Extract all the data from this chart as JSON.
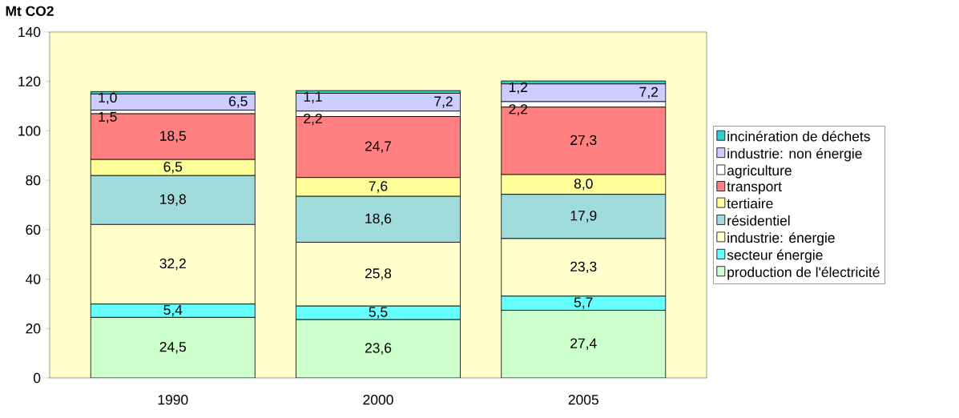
{
  "chart_data": {
    "type": "bar",
    "stacked": true,
    "ylabel": "Mt CO2",
    "categories": [
      "1990",
      "2000",
      "2005"
    ],
    "ylim": [
      0,
      140
    ],
    "yticks": [
      0,
      20,
      40,
      60,
      80,
      100,
      120,
      140
    ],
    "legend": "right",
    "series": [
      {
        "name": "production de l'électricité",
        "color": "#ccffcc",
        "values": [
          24.5,
          23.6,
          27.4
        ],
        "value_labels": [
          "24,5",
          "23,6",
          "27,4"
        ]
      },
      {
        "name": "secteur énergie",
        "color": "#66ffff",
        "values": [
          5.4,
          5.5,
          5.7
        ],
        "value_labels": [
          "5,4",
          "5,5",
          "5,7"
        ]
      },
      {
        "name": "industrie: énergie",
        "color": "#ffffcc",
        "values": [
          32.2,
          25.8,
          23.3
        ],
        "value_labels": [
          "32,2",
          "25,8",
          "23,3"
        ]
      },
      {
        "name": "résidentiel",
        "color": "#a0dcdc",
        "values": [
          19.8,
          18.6,
          17.9
        ],
        "value_labels": [
          "19,8",
          "18,6",
          "17,9"
        ]
      },
      {
        "name": "tertiaire",
        "color": "#ffff99",
        "values": [
          6.5,
          7.6,
          8.0
        ],
        "value_labels": [
          "6,5",
          "7,6",
          "8,0"
        ]
      },
      {
        "name": "transport",
        "color": "#ff8080",
        "values": [
          18.5,
          24.7,
          27.3
        ],
        "value_labels": [
          "18,5",
          "24,7",
          "27,3"
        ]
      },
      {
        "name": "agriculture",
        "color": "#ffffff",
        "values": [
          1.5,
          2.2,
          2.2
        ],
        "value_labels": [
          "1,5",
          "2,2",
          "2,2"
        ]
      },
      {
        "name": "industrie: non énergie",
        "color": "#ccccff",
        "values": [
          6.5,
          7.2,
          7.2
        ],
        "value_labels": [
          "6,5",
          "7,2",
          "7,2"
        ]
      },
      {
        "name": "incinération de déchets",
        "color": "#33cccc",
        "values": [
          1.0,
          1.1,
          1.2
        ],
        "value_labels": [
          "1,0",
          "1,1",
          "1,2"
        ]
      }
    ]
  }
}
